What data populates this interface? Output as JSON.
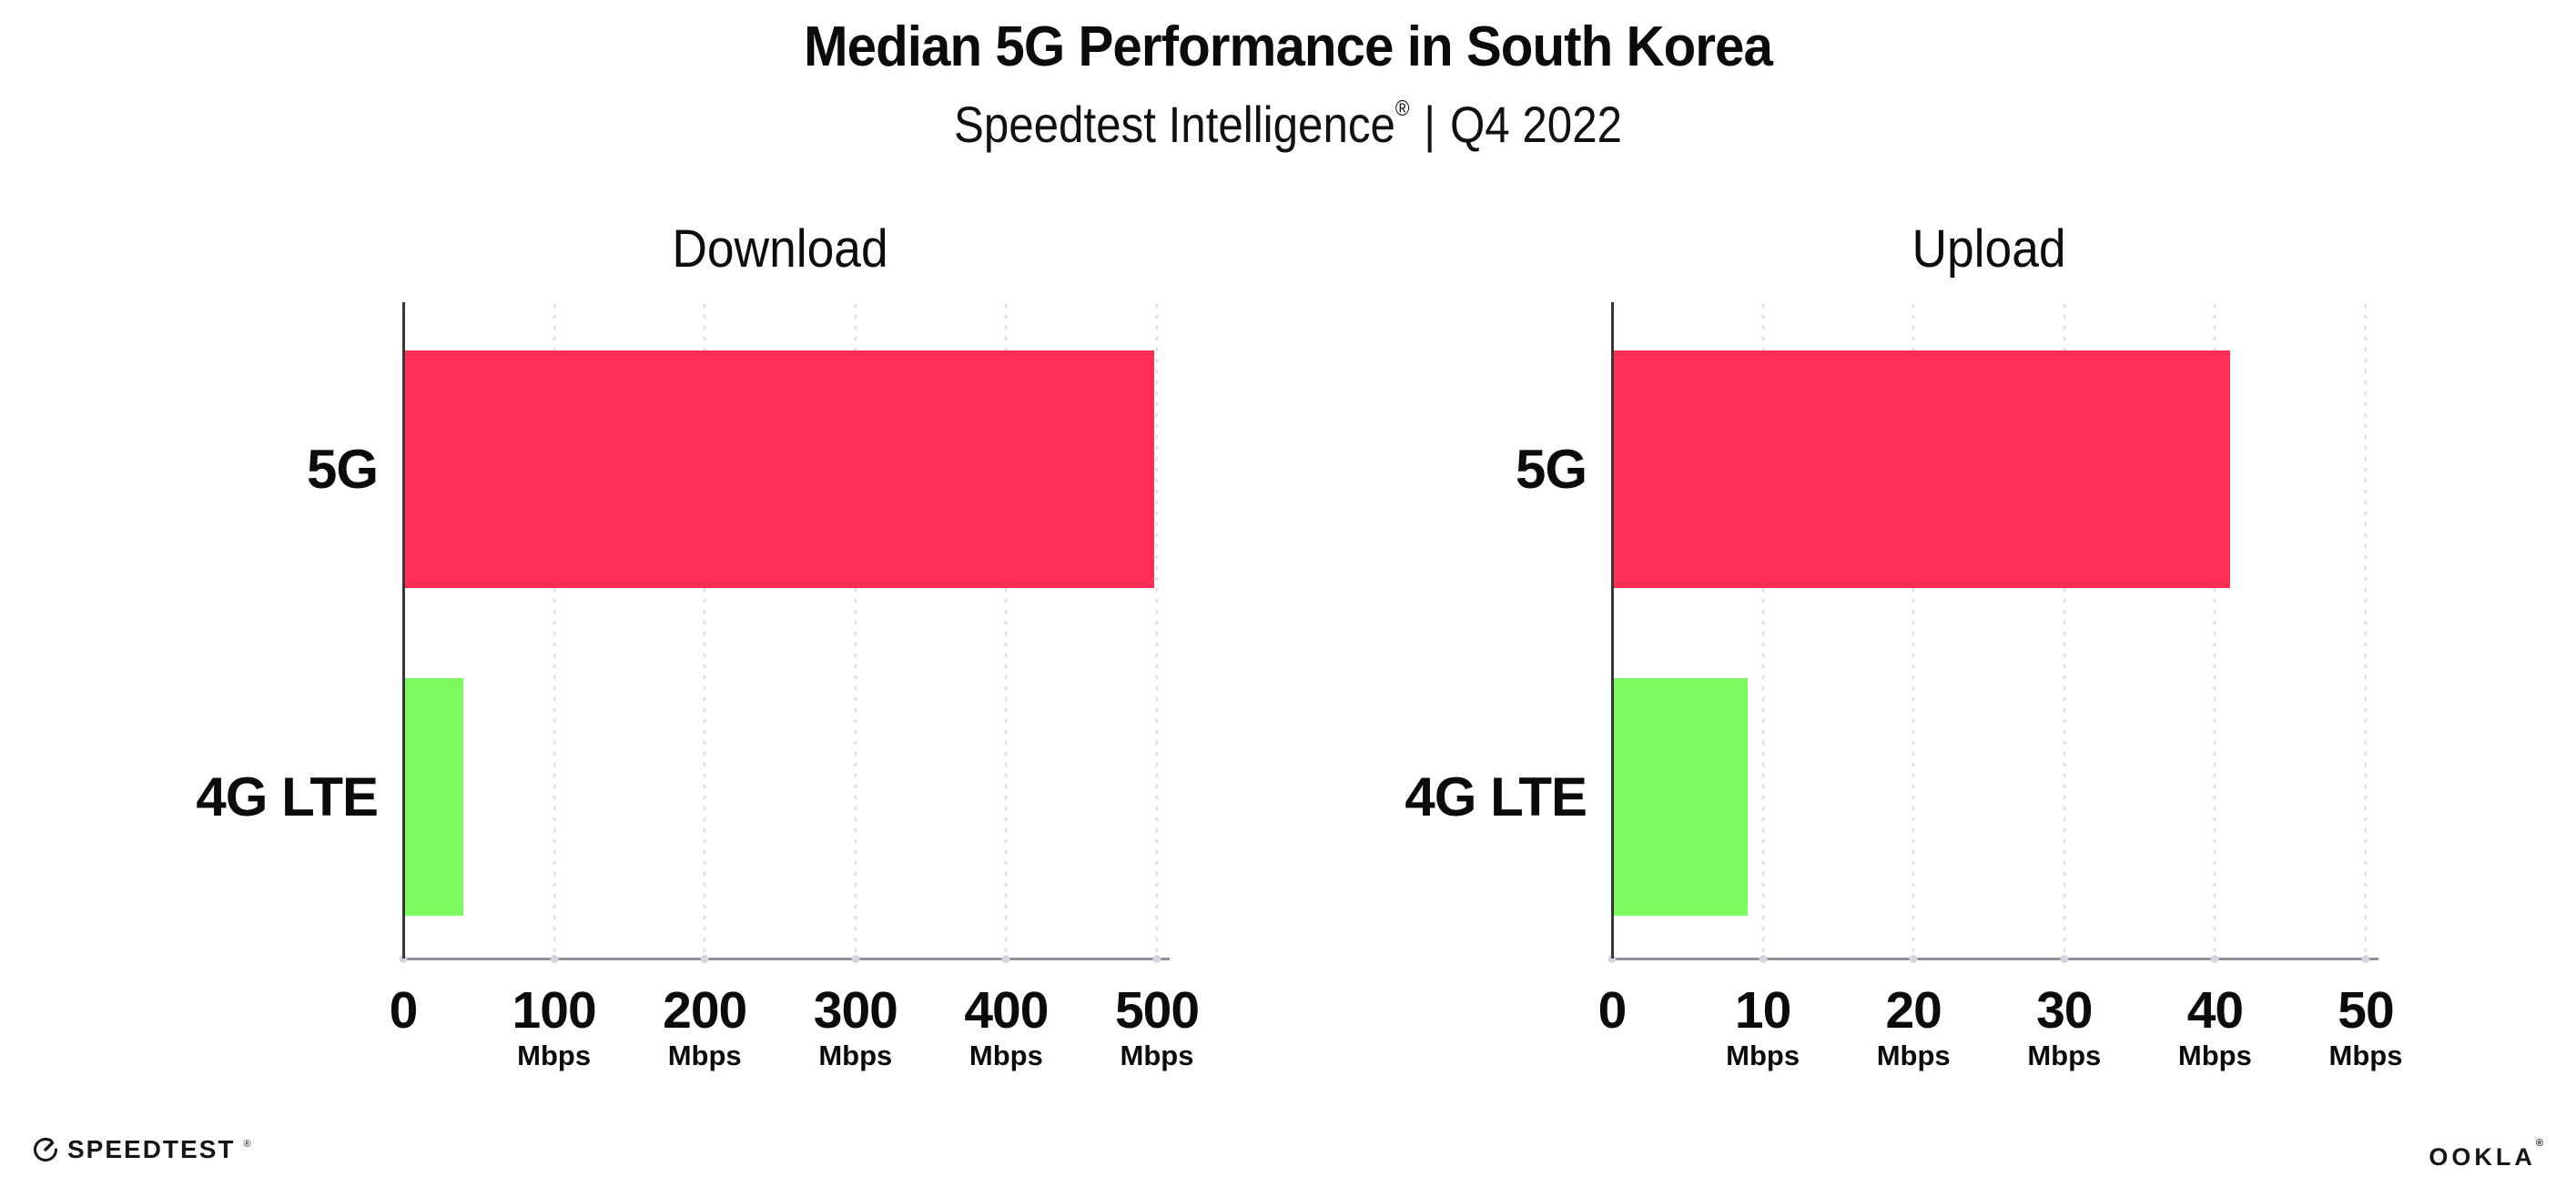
{
  "header": {
    "title": "Median 5G Performance in South Korea",
    "subtitle_brand": "Speedtest Intelligence",
    "subtitle_reg": "®",
    "subtitle_separator": "|",
    "subtitle_period": "Q4 2022"
  },
  "chart_data": [
    {
      "type": "bar",
      "orientation": "horizontal",
      "title": "Download",
      "categories": [
        "5G",
        "4G LTE"
      ],
      "values": [
        498,
        40
      ],
      "unit": "Mbps",
      "xlim": [
        0,
        500
      ],
      "xticks": [
        0,
        100,
        200,
        300,
        400,
        500
      ],
      "tick_unit_label": "Mbps",
      "bar_colors": [
        "#FF2E56",
        "#7DFA60"
      ],
      "grid": "dotted-vertical",
      "legend": "none"
    },
    {
      "type": "bar",
      "orientation": "horizontal",
      "title": "Upload",
      "categories": [
        "5G",
        "4G LTE"
      ],
      "values": [
        41,
        9
      ],
      "unit": "Mbps",
      "xlim": [
        0,
        50
      ],
      "xticks": [
        0,
        10,
        20,
        30,
        40,
        50
      ],
      "tick_unit_label": "Mbps",
      "bar_colors": [
        "#FF2E56",
        "#7DFA60"
      ],
      "grid": "dotted-vertical",
      "legend": "none"
    }
  ],
  "footer": {
    "speedtest_logo_text": "SPEEDTEST",
    "speedtest_trademark": "®",
    "ookla_logo_text": "OOKLA",
    "ookla_trademark": "®"
  },
  "colors": {
    "bar_5g": "#FF2E56",
    "bar_4g_lte": "#7DFA60",
    "gridline": "#E1E1E9",
    "axis_x": "#8F8F99",
    "axis_y": "#36363C",
    "text": "#0B0B0B"
  }
}
